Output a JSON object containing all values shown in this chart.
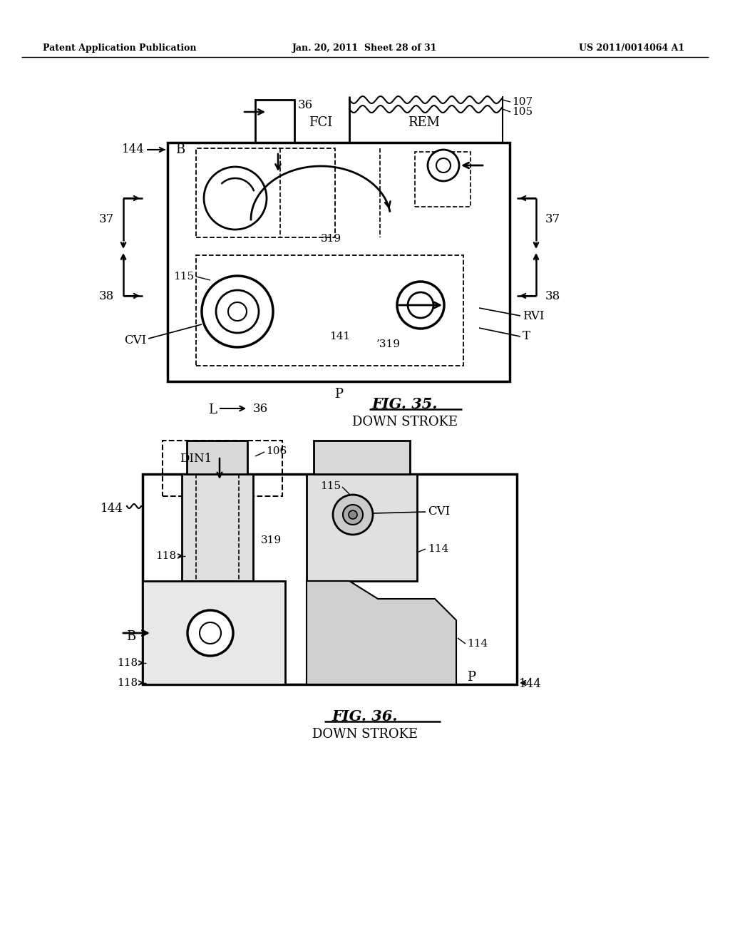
{
  "header_left": "Patent Application Publication",
  "header_mid": "Jan. 20, 2011  Sheet 28 of 31",
  "header_right": "US 2011/0014064 A1",
  "fig35_title": "FIG. 35.",
  "fig35_subtitle": "DOWN STROKE",
  "fig36_title": "FIG. 36.",
  "fig36_subtitle": "DOWN STROKE",
  "bg_color": "#ffffff",
  "line_color": "#000000"
}
